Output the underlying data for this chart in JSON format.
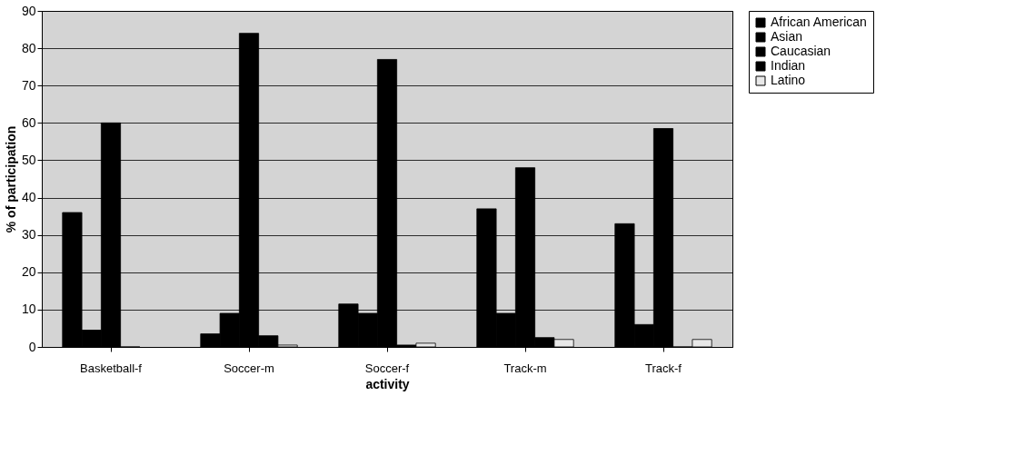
{
  "chart_data": {
    "type": "bar",
    "xlabel": "activity",
    "ylabel": "% of participation",
    "categories": [
      "Basketball-f",
      "Soccer-m",
      "Soccer-f",
      "Track-m",
      "Track-f"
    ],
    "series": [
      {
        "name": "African American",
        "color": "#000000",
        "values": [
          36,
          3.5,
          11.5,
          37,
          33
        ]
      },
      {
        "name": "Asian",
        "color": "#000000",
        "values": [
          4.5,
          9,
          9,
          9,
          6
        ]
      },
      {
        "name": "Caucasian",
        "color": "#000000",
        "values": [
          60,
          84,
          77,
          48,
          58.5
        ]
      },
      {
        "name": "Indian",
        "color": "#000000",
        "values": [
          0,
          3,
          0.5,
          2.5,
          0
        ]
      },
      {
        "name": "Latino",
        "color": "#e8e8e8",
        "values": [
          null,
          0.5,
          1,
          2,
          2
        ]
      }
    ],
    "ylim": [
      0,
      90
    ],
    "yticks": [
      0,
      10,
      20,
      30,
      40,
      50,
      60,
      70,
      80,
      90
    ],
    "grid": "y",
    "legend": "right"
  }
}
